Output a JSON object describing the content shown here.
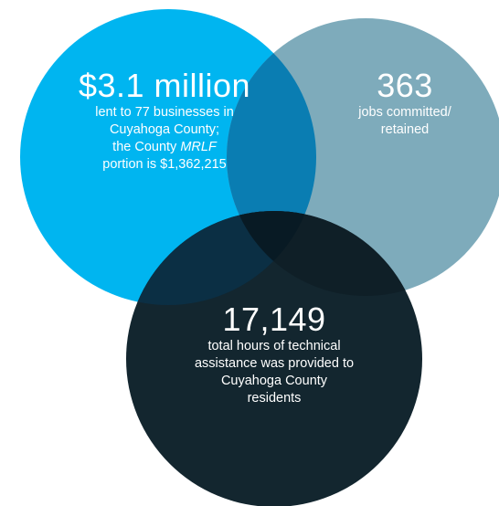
{
  "colors": {
    "left_circle": "#00b5f0",
    "right_circle": "#7eabbb",
    "bottom_circle": "#13262f",
    "overlap_left_right": "#0a7db2",
    "overlap_left_bottom": "#0b2f44",
    "overlap_right_bottom": "#0f1f27",
    "center_overlap": "#081a24",
    "text": "#ffffff"
  },
  "left": {
    "headline": "$3.1 million",
    "line1": "lent to 77 businesses in",
    "line2": "Cuyahoga County;",
    "line3_prefix": "the County ",
    "line3_italic": "MRLF",
    "line4": "portion is $1,362,215"
  },
  "right": {
    "headline": "363",
    "line1": "jobs committed/",
    "line2": "retained"
  },
  "bottom": {
    "headline": "17,149",
    "line1": "total hours of technical",
    "line2": "assistance was provided to",
    "line3": "Cuyahoga County",
    "line4": "residents"
  }
}
